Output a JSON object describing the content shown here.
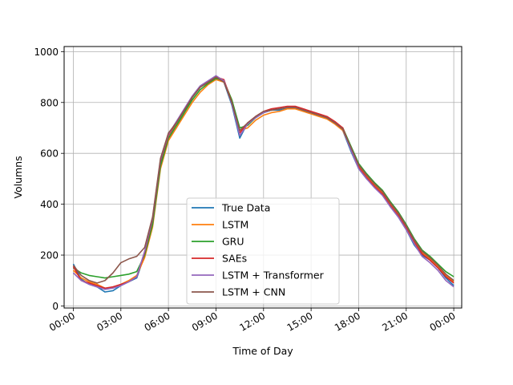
{
  "chart_data": {
    "type": "line",
    "title": "",
    "xlabel": "Time of Day",
    "ylabel": "Volumns",
    "x_unit": "hours",
    "xlim": [
      -0.58,
      24.5
    ],
    "ylim": [
      -8,
      1020
    ],
    "x_ticks": [
      {
        "value": 0,
        "label": "00:00"
      },
      {
        "value": 3,
        "label": "03:00"
      },
      {
        "value": 6,
        "label": "06:00"
      },
      {
        "value": 9,
        "label": "09:00"
      },
      {
        "value": 12,
        "label": "12:00"
      },
      {
        "value": 15,
        "label": "15:00"
      },
      {
        "value": 18,
        "label": "18:00"
      },
      {
        "value": 21,
        "label": "21:00"
      },
      {
        "value": 24,
        "label": "00:00"
      }
    ],
    "y_ticks": [
      {
        "value": 0,
        "label": "0"
      },
      {
        "value": 200,
        "label": "200"
      },
      {
        "value": 400,
        "label": "400"
      },
      {
        "value": 600,
        "label": "600"
      },
      {
        "value": 800,
        "label": "800"
      },
      {
        "value": 1000,
        "label": "1000"
      }
    ],
    "grid": true,
    "legend_position": "lower-center",
    "x": [
      0,
      0.5,
      1,
      1.5,
      2,
      2.5,
      3,
      3.5,
      4,
      4.5,
      5,
      5.5,
      6,
      6.5,
      7,
      7.5,
      8,
      8.5,
      9,
      9.5,
      10,
      10.5,
      11,
      11.5,
      12,
      12.5,
      13,
      13.5,
      14,
      14.5,
      15,
      15.5,
      16,
      16.5,
      17,
      17.5,
      18,
      18.5,
      19,
      19.5,
      20,
      20.5,
      21,
      21.5,
      22,
      22.5,
      23,
      23.5,
      24
    ],
    "series": [
      {
        "name": "True Data",
        "color": "#1f77b4",
        "values": [
          165,
          105,
          85,
          75,
          55,
          60,
          80,
          95,
          110,
          200,
          330,
          560,
          660,
          700,
          760,
          820,
          860,
          880,
          900,
          880,
          790,
          660,
          720,
          740,
          760,
          770,
          770,
          780,
          780,
          770,
          760,
          750,
          740,
          720,
          690,
          610,
          540,
          500,
          470,
          440,
          390,
          350,
          300,
          240,
          200,
          180,
          150,
          110,
          80
        ]
      },
      {
        "name": "LSTM",
        "color": "#ff7f0e",
        "values": [
          140,
          110,
          95,
          85,
          70,
          70,
          85,
          100,
          120,
          190,
          310,
          540,
          650,
          700,
          750,
          800,
          840,
          870,
          890,
          880,
          810,
          690,
          700,
          730,
          750,
          760,
          765,
          775,
          775,
          765,
          755,
          745,
          735,
          715,
          690,
          620,
          550,
          510,
          475,
          445,
          400,
          360,
          310,
          255,
          210,
          185,
          155,
          120,
          95
        ]
      },
      {
        "name": "GRU",
        "color": "#2ca02c",
        "values": [
          150,
          130,
          120,
          115,
          110,
          115,
          120,
          125,
          135,
          200,
          320,
          550,
          660,
          710,
          760,
          810,
          850,
          875,
          895,
          885,
          810,
          700,
          710,
          740,
          760,
          770,
          775,
          780,
          780,
          770,
          760,
          750,
          740,
          720,
          700,
          630,
          560,
          520,
          485,
          455,
          410,
          370,
          320,
          265,
          220,
          195,
          165,
          135,
          115
        ]
      },
      {
        "name": "SAEs",
        "color": "#d62728",
        "values": [
          155,
          100,
          90,
          80,
          70,
          75,
          85,
          95,
          115,
          210,
          340,
          570,
          670,
          720,
          770,
          820,
          860,
          880,
          900,
          890,
          800,
          680,
          720,
          745,
          765,
          775,
          780,
          785,
          785,
          775,
          765,
          755,
          745,
          725,
          700,
          620,
          545,
          505,
          470,
          440,
          395,
          355,
          305,
          250,
          205,
          180,
          150,
          115,
          90
        ]
      },
      {
        "name": "LSTM + Transformer",
        "color": "#9467bd",
        "values": [
          130,
          100,
          85,
          75,
          65,
          70,
          80,
          95,
          115,
          215,
          345,
          575,
          675,
          725,
          775,
          825,
          865,
          885,
          905,
          885,
          795,
          670,
          715,
          740,
          760,
          770,
          775,
          780,
          780,
          770,
          760,
          750,
          740,
          720,
          695,
          615,
          540,
          500,
          465,
          435,
          390,
          350,
          300,
          245,
          195,
          170,
          140,
          100,
          75
        ]
      },
      {
        "name": "LSTM + CNN",
        "color": "#8c564b",
        "values": [
          160,
          120,
          100,
          90,
          100,
          130,
          170,
          185,
          195,
          230,
          350,
          580,
          680,
          720,
          770,
          820,
          860,
          880,
          900,
          880,
          800,
          690,
          720,
          745,
          765,
          770,
          775,
          780,
          780,
          770,
          760,
          750,
          740,
          720,
          695,
          625,
          555,
          515,
          480,
          450,
          405,
          365,
          315,
          260,
          215,
          190,
          160,
          125,
          100
        ]
      }
    ]
  }
}
